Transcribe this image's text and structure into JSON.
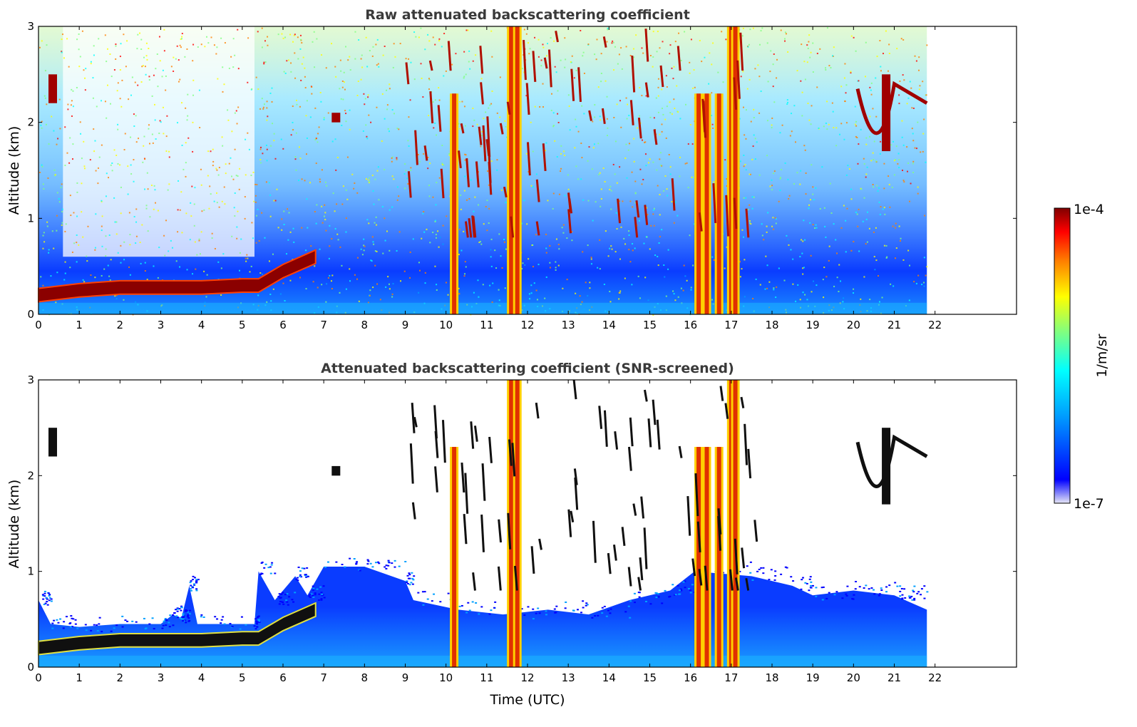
{
  "chart_data": [
    {
      "type": "heatmap",
      "title": "Raw attenuated backscattering coefficient",
      "xlabel": "",
      "ylabel": "Altitude (km)",
      "xlim": [
        0,
        24
      ],
      "ylim": [
        0,
        3
      ],
      "xticks": [
        "0",
        "1",
        "2",
        "3",
        "4",
        "5",
        "6",
        "7",
        "8",
        "9",
        "10",
        "11",
        "12",
        "13",
        "14",
        "15",
        "16",
        "17",
        "18",
        "19",
        "20",
        "21",
        "22"
      ],
      "yticks": [
        "0",
        "1",
        "2",
        "3"
      ],
      "data_end_time": 21.8,
      "features": {
        "boundary_layer": [
          {
            "t": 0.0,
            "alt": 0.2
          },
          {
            "t": 1.0,
            "alt": 0.25
          },
          {
            "t": 2.0,
            "alt": 0.28
          },
          {
            "t": 3.0,
            "alt": 0.28
          },
          {
            "t": 4.0,
            "alt": 0.28
          },
          {
            "t": 5.0,
            "alt": 0.3
          },
          {
            "t": 5.4,
            "alt": 0.3
          },
          {
            "t": 6.0,
            "alt": 0.45
          },
          {
            "t": 6.8,
            "alt": 0.6
          }
        ],
        "precipitation_columns_utc": [
          10.2,
          11.6,
          11.75,
          16.2,
          16.4,
          16.7,
          17.0,
          17.1
        ],
        "elevated_layers": [
          {
            "t": 0.35,
            "alt_min": 2.2,
            "alt_max": 2.5
          },
          {
            "t": 7.3,
            "alt_min": 2.0,
            "alt_max": 2.1
          },
          {
            "t": 20.8,
            "alt_min": 1.7,
            "alt_max": 2.5
          }
        ]
      }
    },
    {
      "type": "heatmap",
      "title": "Attenuated backscattering coefficient (SNR-screened)",
      "xlabel": "Time (UTC)",
      "ylabel": "Altitude (km)",
      "xlim": [
        0,
        24
      ],
      "ylim": [
        0,
        3
      ],
      "xticks": [
        "0",
        "1",
        "2",
        "3",
        "4",
        "5",
        "6",
        "7",
        "8",
        "9",
        "10",
        "11",
        "12",
        "13",
        "14",
        "15",
        "16",
        "17",
        "18",
        "19",
        "20",
        "21",
        "22"
      ],
      "yticks": [
        "0",
        "1",
        "2",
        "3"
      ],
      "data_end_time": 21.8
    }
  ],
  "colorbar": {
    "min_label": "1e-7",
    "max_label": "1e-4",
    "label": "1/m/sr",
    "colormap": "jet",
    "colors": [
      "#e6e6f5",
      "#0000ff",
      "#00a0ff",
      "#00ffff",
      "#80ff80",
      "#ffff00",
      "#ff8000",
      "#ff0000",
      "#800000"
    ]
  }
}
